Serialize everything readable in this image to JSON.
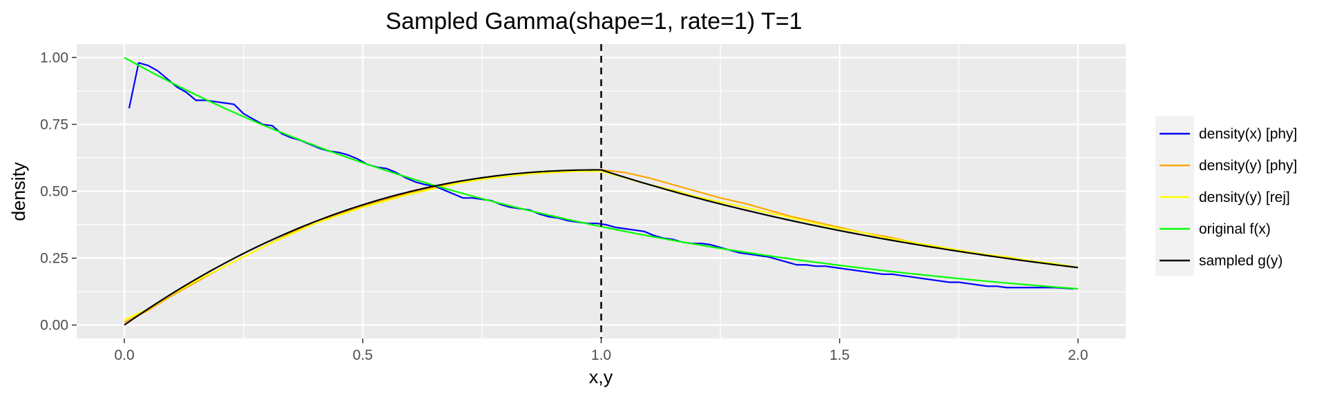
{
  "chart_data": {
    "type": "line",
    "title": "Sampled Gamma(shape=1, rate=1) T=1",
    "xlabel": "x,y",
    "ylabel": "density",
    "xlim": [
      -0.1,
      2.1
    ],
    "ylim": [
      -0.05,
      1.05
    ],
    "x_ticks": [
      0.0,
      0.5,
      1.0,
      1.5,
      2.0
    ],
    "x_tick_labels": [
      "0.0",
      "0.5",
      "1.0",
      "1.5",
      "2.0"
    ],
    "y_ticks": [
      0.0,
      0.25,
      0.5,
      0.75,
      1.0
    ],
    "y_tick_labels": [
      "0.00",
      "0.25",
      "0.50",
      "0.75",
      "1.00"
    ],
    "grid": true,
    "legend_position": "right",
    "vline": {
      "x": 1.0,
      "style": "dashed",
      "color": "#000000"
    },
    "series": [
      {
        "name": "density(x) [phy]",
        "color": "#0000ff",
        "x": [
          0.01,
          0.03,
          0.05,
          0.07,
          0.09,
          0.11,
          0.13,
          0.15,
          0.17,
          0.19,
          0.21,
          0.23,
          0.25,
          0.27,
          0.29,
          0.31,
          0.33,
          0.35,
          0.37,
          0.39,
          0.41,
          0.43,
          0.45,
          0.47,
          0.49,
          0.51,
          0.53,
          0.55,
          0.57,
          0.59,
          0.61,
          0.63,
          0.65,
          0.67,
          0.69,
          0.71,
          0.73,
          0.75,
          0.77,
          0.79,
          0.81,
          0.83,
          0.85,
          0.87,
          0.89,
          0.91,
          0.93,
          0.95,
          0.97,
          0.99,
          1.01,
          1.03,
          1.05,
          1.07,
          1.09,
          1.11,
          1.13,
          1.15,
          1.17,
          1.19,
          1.21,
          1.23,
          1.25,
          1.27,
          1.29,
          1.31,
          1.33,
          1.35,
          1.37,
          1.39,
          1.41,
          1.43,
          1.45,
          1.47,
          1.49,
          1.51,
          1.53,
          1.55,
          1.57,
          1.59,
          1.61,
          1.63,
          1.65,
          1.67,
          1.69,
          1.71,
          1.73,
          1.75,
          1.77,
          1.79,
          1.81,
          1.83,
          1.85,
          1.87,
          1.89,
          1.91,
          1.93,
          1.95,
          1.97,
          1.99
        ],
        "values": [
          0.81,
          0.98,
          0.97,
          0.95,
          0.92,
          0.89,
          0.87,
          0.84,
          0.84,
          0.835,
          0.83,
          0.825,
          0.79,
          0.77,
          0.75,
          0.745,
          0.715,
          0.7,
          0.69,
          0.675,
          0.66,
          0.65,
          0.645,
          0.635,
          0.62,
          0.6,
          0.59,
          0.585,
          0.57,
          0.55,
          0.535,
          0.525,
          0.52,
          0.505,
          0.49,
          0.475,
          0.475,
          0.47,
          0.465,
          0.45,
          0.44,
          0.435,
          0.43,
          0.415,
          0.405,
          0.4,
          0.39,
          0.385,
          0.38,
          0.38,
          0.375,
          0.365,
          0.36,
          0.355,
          0.35,
          0.335,
          0.325,
          0.32,
          0.31,
          0.305,
          0.305,
          0.3,
          0.29,
          0.28,
          0.27,
          0.265,
          0.26,
          0.255,
          0.245,
          0.235,
          0.225,
          0.225,
          0.22,
          0.22,
          0.215,
          0.21,
          0.205,
          0.2,
          0.195,
          0.19,
          0.19,
          0.185,
          0.18,
          0.175,
          0.17,
          0.165,
          0.16,
          0.16,
          0.155,
          0.15,
          0.145,
          0.145,
          0.14,
          0.14,
          0.14,
          0.14,
          0.14,
          0.14,
          0.138,
          0.135
        ]
      },
      {
        "name": "density(y) [phy]",
        "color": "#ffa500",
        "x": [
          0.0,
          0.05,
          0.1,
          0.15,
          0.2,
          0.25,
          0.3,
          0.35,
          0.4,
          0.45,
          0.5,
          0.55,
          0.6,
          0.65,
          0.7,
          0.75,
          0.8,
          0.85,
          0.9,
          0.95,
          1.0,
          1.05,
          1.1,
          1.15,
          1.2,
          1.25,
          1.3,
          1.35,
          1.4,
          1.45,
          1.5,
          1.55,
          1.6,
          1.65,
          1.7,
          1.75,
          1.8,
          1.85,
          1.9,
          1.95,
          2.0
        ],
        "values": [
          0.01,
          0.055,
          0.11,
          0.16,
          0.21,
          0.255,
          0.3,
          0.345,
          0.38,
          0.415,
          0.445,
          0.47,
          0.495,
          0.515,
          0.53,
          0.545,
          0.555,
          0.565,
          0.57,
          0.575,
          0.58,
          0.57,
          0.55,
          0.525,
          0.5,
          0.475,
          0.455,
          0.43,
          0.405,
          0.385,
          0.365,
          0.345,
          0.33,
          0.31,
          0.295,
          0.28,
          0.265,
          0.25,
          0.24,
          0.225,
          0.215
        ]
      },
      {
        "name": "density(y) [rej]",
        "color": "#ffff00",
        "x": [
          0.0,
          0.05,
          0.1,
          0.15,
          0.2,
          0.25,
          0.3,
          0.35,
          0.4,
          0.45,
          0.5,
          0.55,
          0.6,
          0.65,
          0.7,
          0.75,
          0.8,
          0.85,
          0.9,
          0.95,
          1.0,
          1.05,
          1.1,
          1.15,
          1.2,
          1.25,
          1.3,
          1.35,
          1.4,
          1.45,
          1.5,
          1.55,
          1.6,
          1.65,
          1.7,
          1.75,
          1.8,
          1.85,
          1.9,
          1.95,
          2.0
        ],
        "values": [
          0.02,
          0.06,
          0.115,
          0.165,
          0.21,
          0.255,
          0.3,
          0.34,
          0.38,
          0.41,
          0.44,
          0.465,
          0.49,
          0.51,
          0.53,
          0.545,
          0.555,
          0.565,
          0.57,
          0.575,
          0.575,
          0.55,
          0.525,
          0.505,
          0.48,
          0.46,
          0.44,
          0.42,
          0.4,
          0.38,
          0.36,
          0.345,
          0.325,
          0.31,
          0.295,
          0.28,
          0.265,
          0.255,
          0.24,
          0.23,
          0.215
        ]
      },
      {
        "name": "original f(x)",
        "color": "#00ff00",
        "fn": "exp(-x)",
        "x_range": [
          0.0,
          2.0
        ]
      },
      {
        "name": "sampled g(y)",
        "color": "#000000",
        "fn": "piecewise: x<1 ? 1-exp(-x)-ish rising : (1-exp(-1))*exp(-(x-1)) falling",
        "x_range": [
          0.0,
          2.0
        ]
      }
    ]
  }
}
